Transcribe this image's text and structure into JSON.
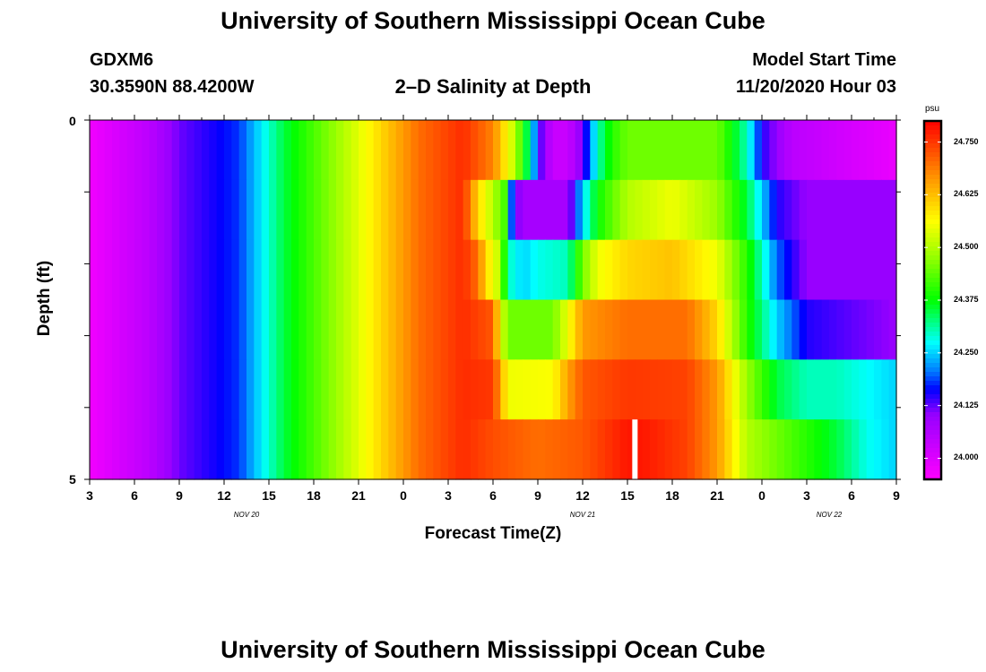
{
  "title_top": "University of Southern Mississippi Ocean Cube",
  "title_bottom": "University of Southern Mississippi Ocean Cube",
  "station": {
    "id": "GDXM6",
    "coords": "30.3590N 88.4200W"
  },
  "plot_title": "2–D Salinity at Depth",
  "model_start": {
    "label": "Model Start Time",
    "value": "11/20/2020 Hour 03"
  },
  "colors": {
    "gap": "#ffffff"
  },
  "chart_data": {
    "type": "heatmap",
    "title": "2–D Salinity at Depth",
    "xlabel": "Forecast Time(Z)",
    "ylabel": "Depth (ft)",
    "x_tick_labels": [
      "3",
      "6",
      "9",
      "12",
      "15",
      "18",
      "21",
      "0",
      "3",
      "6",
      "9",
      "12",
      "15",
      "18",
      "21",
      "0",
      "3",
      "6",
      "9"
    ],
    "x_range_hours": [
      0,
      54
    ],
    "date_labels": [
      {
        "text": "NOV  20",
        "hour": 10.5
      },
      {
        "text": "NOV  21",
        "hour": 33
      },
      {
        "text": "NOV  22",
        "hour": 49.5
      }
    ],
    "y_tick_labels": [
      "0",
      "5"
    ],
    "y_range": [
      0,
      5
    ],
    "units": "psu",
    "colorbar": {
      "min": 23.95,
      "max": 24.8,
      "tick_values": [
        24.0,
        24.125,
        24.25,
        24.375,
        24.5,
        24.625,
        24.75
      ],
      "tick_labels": [
        "24.000",
        "24.125",
        "24.250",
        "24.375",
        "24.500",
        "24.625",
        "24.750"
      ]
    },
    "missing_hour": 36.5,
    "layer_profiles": [
      [
        [
          0,
          23.97
        ],
        [
          4,
          24.05
        ],
        [
          6,
          24.12
        ],
        [
          10,
          24.18
        ],
        [
          13,
          24.35
        ],
        [
          17,
          24.5
        ],
        [
          20,
          24.62
        ],
        [
          22,
          24.7
        ],
        [
          25,
          24.76
        ],
        [
          27,
          24.68
        ],
        [
          28,
          24.56
        ],
        [
          28.5,
          24.5
        ],
        [
          29.5,
          24.3
        ],
        [
          30,
          24.15
        ],
        [
          31,
          24.03
        ],
        [
          32,
          24.03
        ],
        [
          33,
          24.12
        ],
        [
          34,
          24.3
        ],
        [
          35,
          24.4
        ],
        [
          36,
          24.45
        ],
        [
          42,
          24.45
        ],
        [
          44,
          24.3
        ],
        [
          45,
          24.15
        ],
        [
          47,
          24.05
        ],
        [
          54,
          23.98
        ]
      ],
      [
        [
          0,
          23.97
        ],
        [
          4,
          24.05
        ],
        [
          6,
          24.12
        ],
        [
          10,
          24.18
        ],
        [
          13,
          24.35
        ],
        [
          17,
          24.5
        ],
        [
          20,
          24.62
        ],
        [
          22,
          24.7
        ],
        [
          25,
          24.76
        ],
        [
          26,
          24.6
        ],
        [
          27,
          24.5
        ],
        [
          27.5,
          24.45
        ],
        [
          28,
          24.4
        ],
        [
          28.3,
          24.15
        ],
        [
          29,
          24.08
        ],
        [
          32,
          24.08
        ],
        [
          33,
          24.25
        ],
        [
          34,
          24.38
        ],
        [
          36,
          24.5
        ],
        [
          39,
          24.55
        ],
        [
          42,
          24.48
        ],
        [
          44,
          24.35
        ],
        [
          46,
          24.15
        ],
        [
          48,
          24.1
        ],
        [
          54,
          24.1
        ]
      ],
      [
        [
          0,
          23.97
        ],
        [
          4,
          24.05
        ],
        [
          6,
          24.12
        ],
        [
          10,
          24.18
        ],
        [
          13,
          24.35
        ],
        [
          17,
          24.5
        ],
        [
          20,
          24.62
        ],
        [
          22,
          24.7
        ],
        [
          25,
          24.76
        ],
        [
          26,
          24.7
        ],
        [
          26.5,
          24.6
        ],
        [
          27,
          24.55
        ],
        [
          27.5,
          24.5
        ],
        [
          28,
          24.3
        ],
        [
          29,
          24.25
        ],
        [
          30,
          24.28
        ],
        [
          32,
          24.3
        ],
        [
          33,
          24.45
        ],
        [
          34,
          24.55
        ],
        [
          36,
          24.6
        ],
        [
          39,
          24.62
        ],
        [
          42,
          24.55
        ],
        [
          44,
          24.4
        ],
        [
          46,
          24.2
        ],
        [
          48,
          24.1
        ],
        [
          54,
          24.1
        ]
      ],
      [
        [
          0,
          23.97
        ],
        [
          4,
          24.05
        ],
        [
          6,
          24.12
        ],
        [
          10,
          24.18
        ],
        [
          13,
          24.35
        ],
        [
          17,
          24.5
        ],
        [
          20,
          24.62
        ],
        [
          22,
          24.7
        ],
        [
          25,
          24.76
        ],
        [
          27,
          24.72
        ],
        [
          27.5,
          24.55
        ],
        [
          28,
          24.45
        ],
        [
          31,
          24.45
        ],
        [
          32,
          24.55
        ],
        [
          33,
          24.66
        ],
        [
          36,
          24.7
        ],
        [
          40,
          24.7
        ],
        [
          42,
          24.6
        ],
        [
          44,
          24.4
        ],
        [
          46,
          24.25
        ],
        [
          48,
          24.15
        ],
        [
          54,
          24.1
        ]
      ],
      [
        [
          0,
          23.97
        ],
        [
          4,
          24.05
        ],
        [
          6,
          24.12
        ],
        [
          10,
          24.18
        ],
        [
          13,
          24.35
        ],
        [
          17,
          24.5
        ],
        [
          20,
          24.62
        ],
        [
          22,
          24.7
        ],
        [
          25,
          24.76
        ],
        [
          27,
          24.75
        ],
        [
          27.5,
          24.65
        ],
        [
          28,
          24.55
        ],
        [
          31,
          24.56
        ],
        [
          32,
          24.65
        ],
        [
          33,
          24.72
        ],
        [
          36,
          24.75
        ],
        [
          40,
          24.74
        ],
        [
          42,
          24.66
        ],
        [
          44,
          24.48
        ],
        [
          46,
          24.35
        ],
        [
          48,
          24.3
        ],
        [
          50,
          24.3
        ],
        [
          54,
          24.25
        ]
      ],
      [
        [
          0,
          23.97
        ],
        [
          4,
          24.05
        ],
        [
          6,
          24.12
        ],
        [
          10,
          24.18
        ],
        [
          13,
          24.35
        ],
        [
          17,
          24.5
        ],
        [
          20,
          24.62
        ],
        [
          22,
          24.7
        ],
        [
          25,
          24.76
        ],
        [
          27,
          24.73
        ],
        [
          30,
          24.7
        ],
        [
          33,
          24.72
        ],
        [
          35,
          24.76
        ],
        [
          36,
          24.78
        ],
        [
          37,
          24.78
        ],
        [
          40,
          24.74
        ],
        [
          42,
          24.66
        ],
        [
          43,
          24.58
        ],
        [
          44,
          24.5
        ],
        [
          46,
          24.45
        ],
        [
          48,
          24.4
        ],
        [
          50,
          24.35
        ],
        [
          52,
          24.28
        ],
        [
          54,
          24.25
        ]
      ]
    ]
  }
}
